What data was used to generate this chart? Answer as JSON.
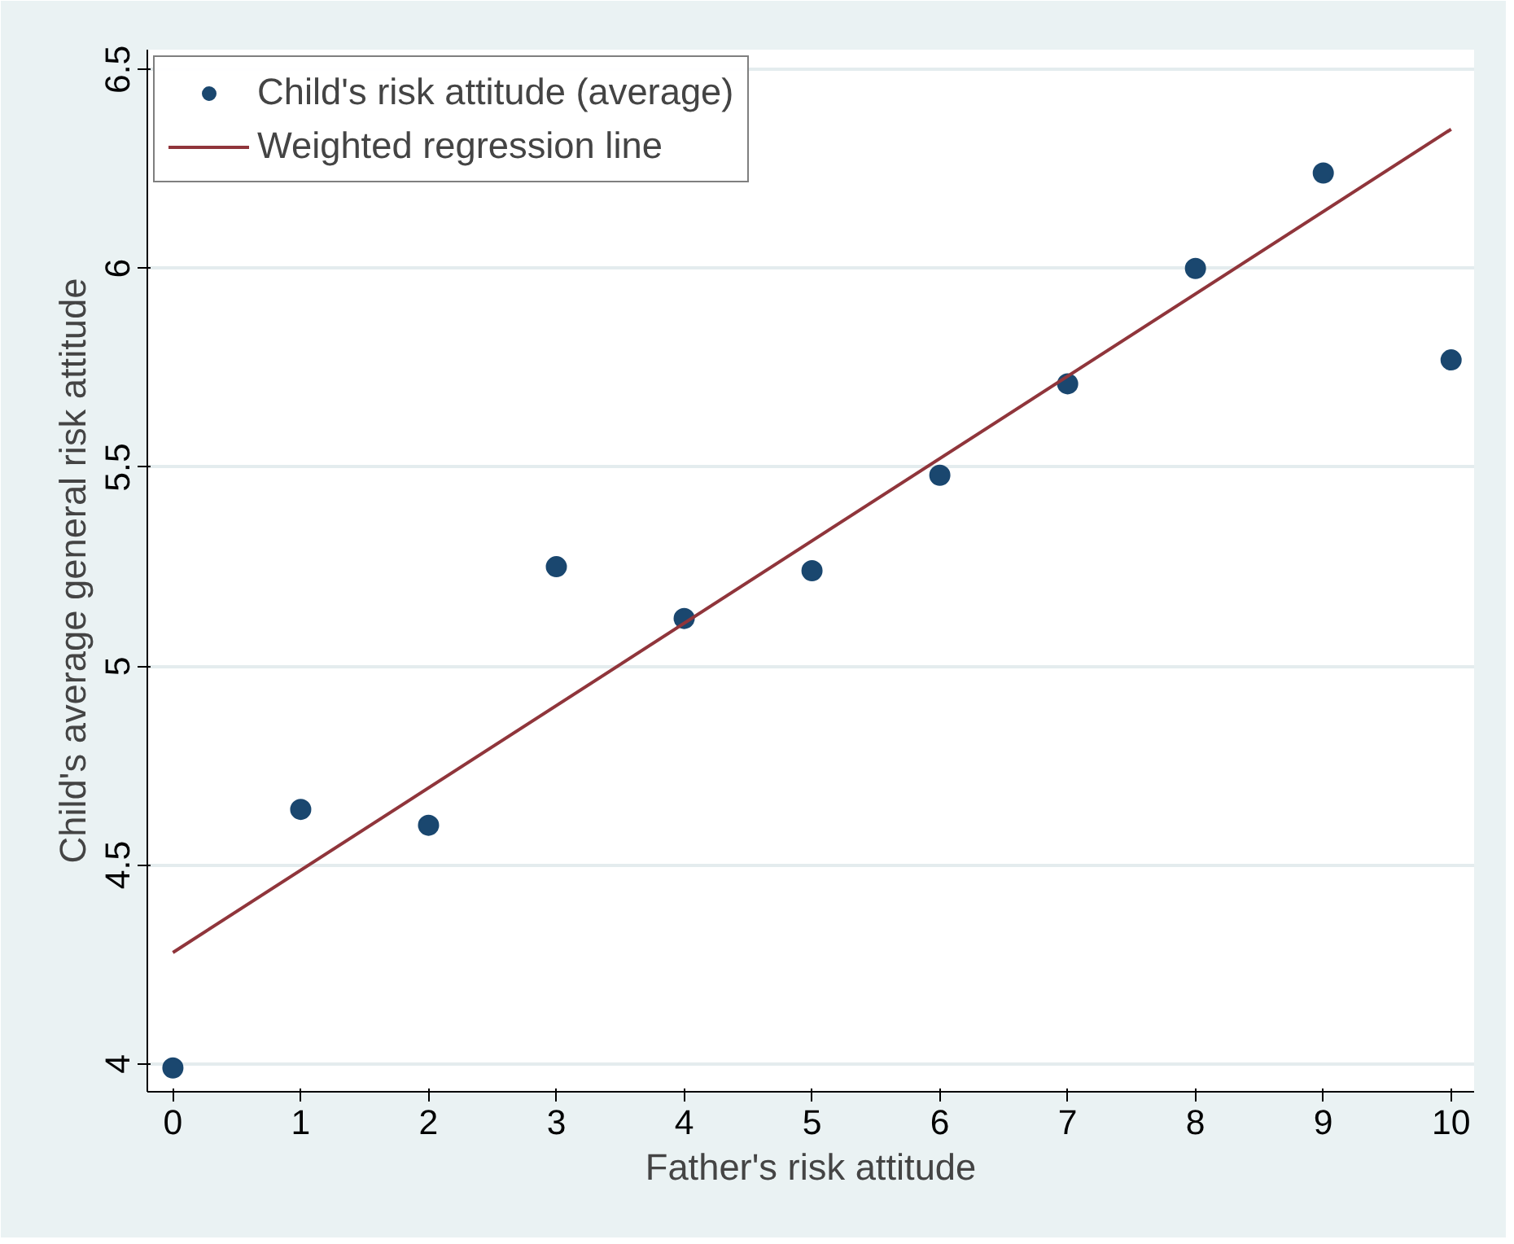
{
  "chart_data": {
    "type": "scatter",
    "xlabel": "Father's risk attitude",
    "ylabel": "Child's average general risk attitude",
    "x": [
      0,
      1,
      2,
      3,
      4,
      5,
      6,
      7,
      8,
      9,
      10
    ],
    "series": [
      {
        "name": "Child's risk attitude (average)",
        "color": "#1a476f",
        "values": [
          3.99,
          4.64,
          4.6,
          5.25,
          5.12,
          5.24,
          5.48,
          5.71,
          6.0,
          6.24,
          5.77
        ]
      },
      {
        "name": "Weighted regression line",
        "type": "line",
        "color": "#90353b",
        "marker": "none",
        "x": [
          0,
          10
        ],
        "values": [
          4.28,
          6.35
        ]
      }
    ],
    "xlim": [
      -0.2,
      10.18
    ],
    "ylim": [
      3.93,
      6.55
    ],
    "xticks": [
      0,
      1,
      2,
      3,
      4,
      5,
      6,
      7,
      8,
      9,
      10
    ],
    "yticks": [
      4,
      4.5,
      5,
      5.5,
      6,
      6.5
    ],
    "grid": "y",
    "legend": "top left",
    "marker": "circle",
    "line_style": "solid"
  }
}
